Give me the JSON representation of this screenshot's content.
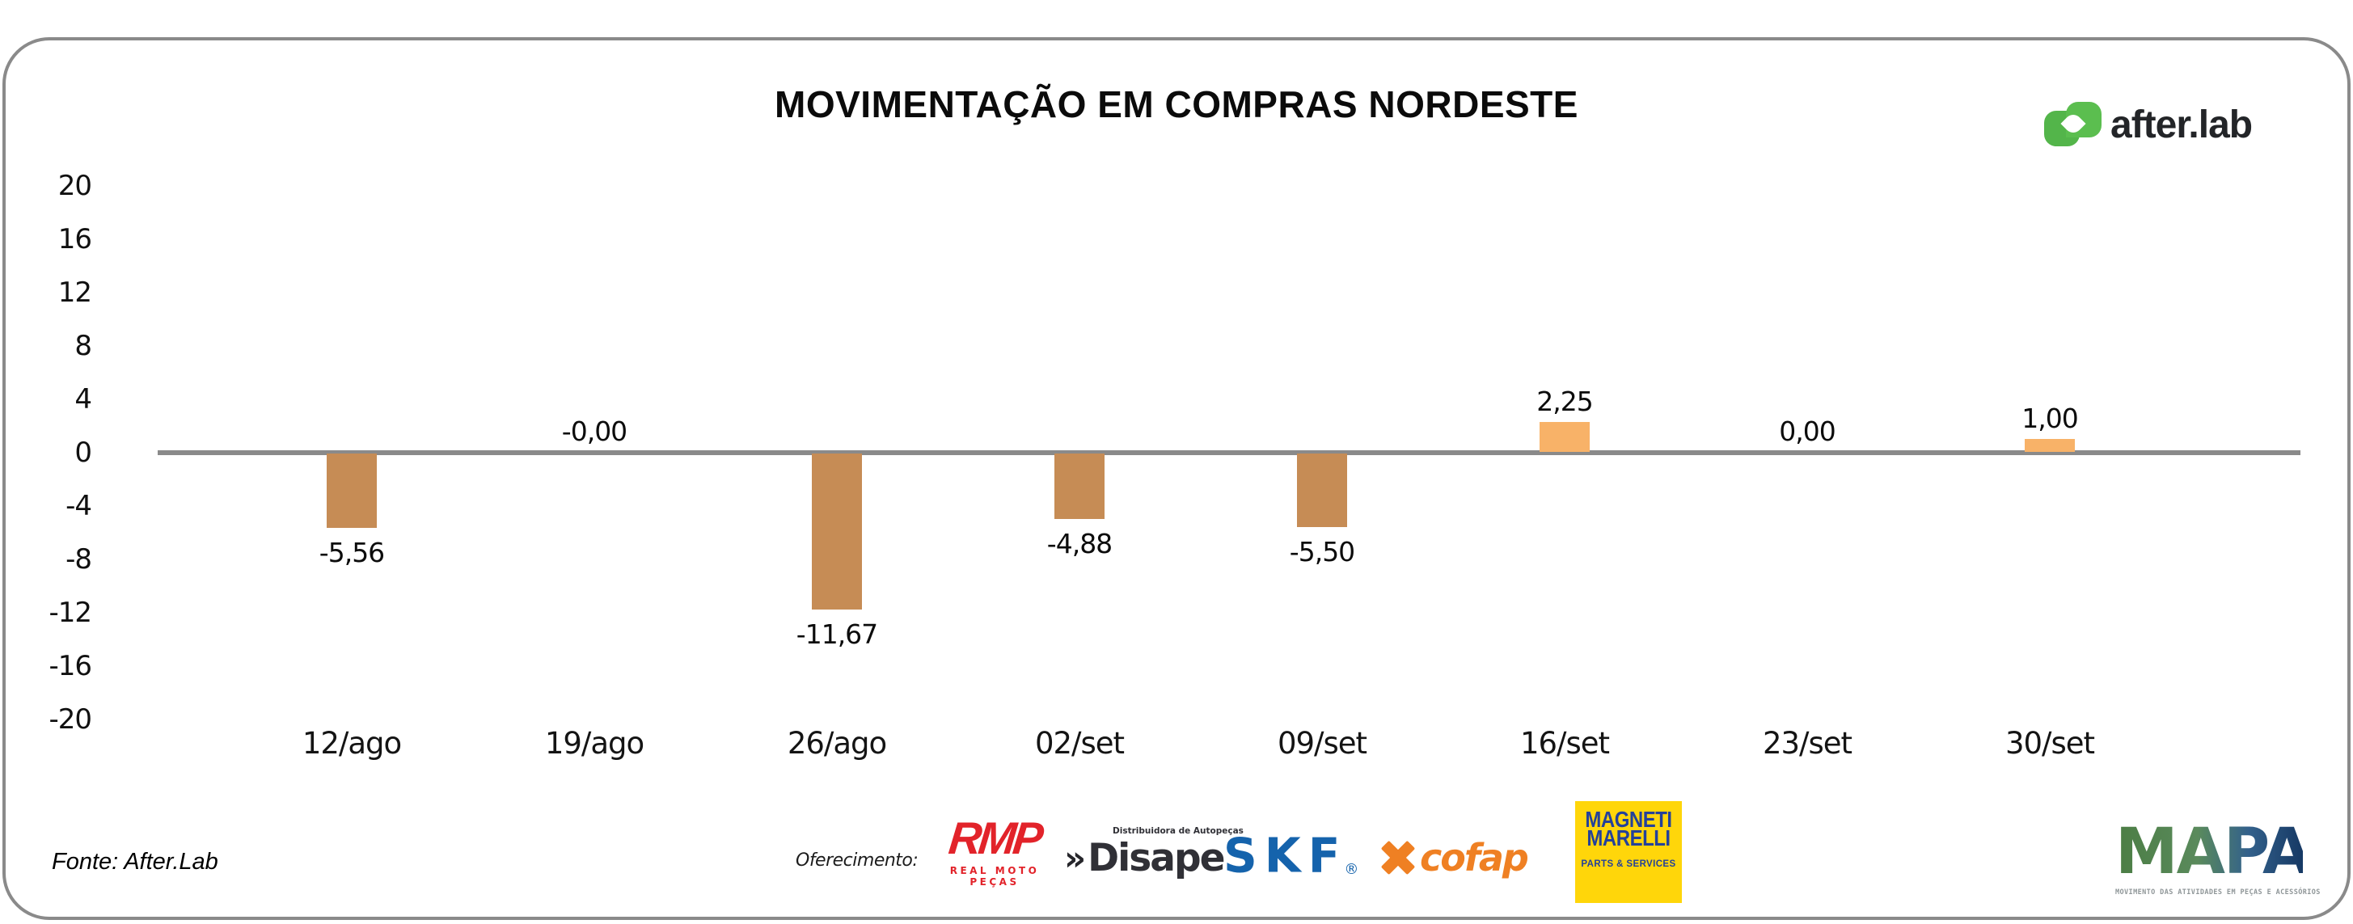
{
  "chart_data": {
    "type": "bar",
    "title": "MOVIMENTAÇÃO EM COMPRAS NORDESTE",
    "categories": [
      "12/ago",
      "19/ago",
      "26/ago",
      "02/set",
      "09/set",
      "16/set",
      "23/set",
      "30/set"
    ],
    "values": [
      -5.56,
      -0.0,
      -11.67,
      -4.88,
      -5.5,
      2.25,
      0.0,
      1.0
    ],
    "value_labels": [
      "-5,56",
      "-0,00",
      "-11,67",
      "-4,88",
      "-5,50",
      "2,25",
      "0,00",
      "1,00"
    ],
    "xlabel": "",
    "ylabel": "",
    "ylim": [
      -20,
      20
    ],
    "yticks": [
      20,
      16,
      12,
      8,
      4,
      0,
      -4,
      -8,
      -12,
      -16,
      -20
    ],
    "grid": false,
    "legend": false,
    "colors": {
      "negative_bar": "#C68C55",
      "positive_bar": "#F8B268",
      "zero_line": "#8a8a8a"
    }
  },
  "brand": {
    "logo_text": "after.lab",
    "logo_green": "#57BA4A"
  },
  "footer": {
    "source": "Fonte: After.Lab",
    "sponsors_label": "Oferecimento:",
    "sponsors": [
      {
        "name": "RMP",
        "text": "RMP",
        "subtext": "REAL MOTO PEÇAS",
        "color": "#E2232A"
      },
      {
        "name": "Disape",
        "prefix": "»",
        "text": "Disape",
        "subtext": "Distribuidora de Autopeças",
        "color": "#303036"
      },
      {
        "name": "SKF",
        "text": "SKF",
        "reg": "®",
        "color": "#1563AC"
      },
      {
        "name": "Cofap",
        "text": "cofap",
        "color": "#EF8023"
      },
      {
        "name": "Magneti Marelli",
        "line1": "MAGNETI",
        "line2": "MARELLI",
        "subtext": "PARTS & SERVICES",
        "box_color": "#FFD60A",
        "text_color": "#24419A"
      }
    ],
    "mapa": {
      "text": "MAPA",
      "tagline": "MOVIMENTO DAS ATIVIDADES EM PEÇAS E ACESSÓRIOS"
    }
  }
}
